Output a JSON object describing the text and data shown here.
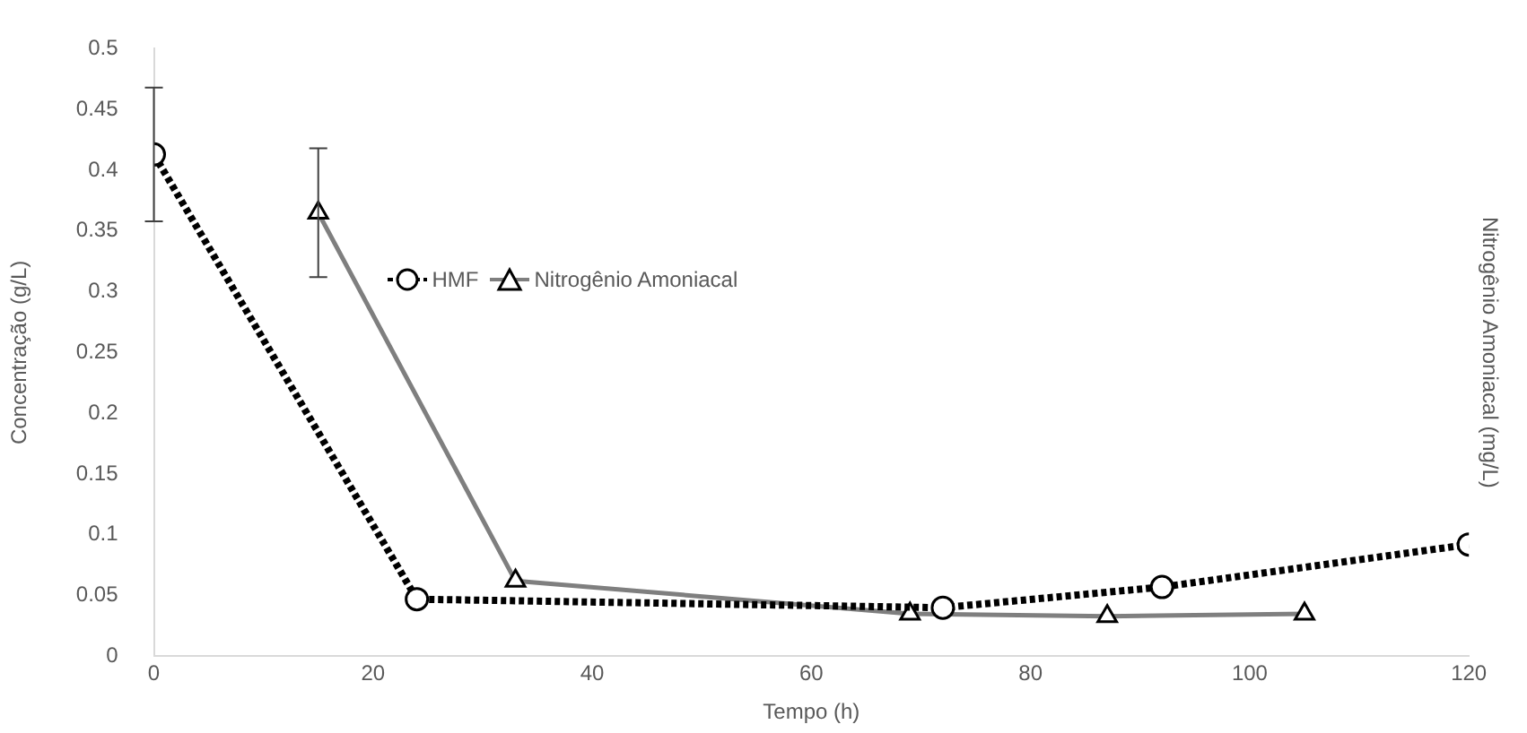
{
  "chart_data": {
    "type": "line",
    "xlabel": "Tempo (h)",
    "ylabel": "Concentração (g/L)",
    "y2label": "Nitrogênio Amoniacal (mg/L)",
    "xlim": [
      0,
      120
    ],
    "xticks": [
      0,
      20,
      40,
      60,
      80,
      100,
      120
    ],
    "ylim": [
      0,
      0.5
    ],
    "yticks": [
      0,
      0.05,
      0.1,
      0.15,
      0.2,
      0.25,
      0.3,
      0.35,
      0.4,
      0.45,
      0.5
    ],
    "grid": false,
    "legend": "left",
    "series": [
      {
        "name": "HMF",
        "color": "#000000",
        "marker": "circle",
        "line_style": "dotted",
        "x": [
          0,
          24,
          72,
          92,
          120
        ],
        "values": [
          0.413,
          0.047,
          0.04,
          0.057,
          0.092
        ],
        "errors": [
          0.055,
          null,
          null,
          null,
          null
        ]
      },
      {
        "name": "Nitrogênio Amoniacal",
        "color": "#7f7f7f",
        "marker": "triangle",
        "line_style": "solid",
        "x": [
          15,
          33,
          69,
          87,
          105
        ],
        "values": [
          0.365,
          0.062,
          0.035,
          0.033,
          0.035
        ],
        "errors": [
          0.053,
          null,
          null,
          null,
          null
        ]
      }
    ]
  }
}
